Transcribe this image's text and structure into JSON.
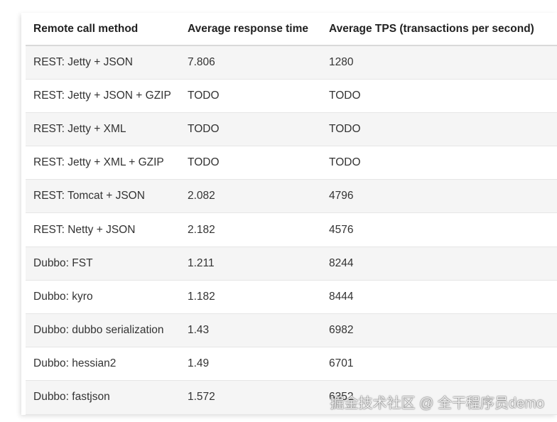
{
  "table": {
    "headers": [
      "Remote call method",
      "Average response time",
      "Average TPS (transactions per second)"
    ],
    "rows": [
      [
        "REST: Jetty + JSON",
        "7.806",
        "1280"
      ],
      [
        "REST: Jetty + JSON + GZIP",
        "TODO",
        "TODO"
      ],
      [
        "REST: Jetty + XML",
        "TODO",
        "TODO"
      ],
      [
        "REST: Jetty + XML + GZIP",
        "TODO",
        "TODO"
      ],
      [
        "REST: Tomcat + JSON",
        "2.082",
        "4796"
      ],
      [
        "REST: Netty + JSON",
        "2.182",
        "4576"
      ],
      [
        "Dubbo: FST",
        "1.211",
        "8244"
      ],
      [
        "Dubbo: kyro",
        "1.182",
        "8444"
      ],
      [
        "Dubbo: dubbo serialization",
        "1.43",
        "6982"
      ],
      [
        "Dubbo: hessian2",
        "1.49",
        "6701"
      ],
      [
        "Dubbo: fastjson",
        "1.572",
        "6352"
      ]
    ]
  },
  "watermark": "掘金技术社区 @ 全干程序员demo"
}
